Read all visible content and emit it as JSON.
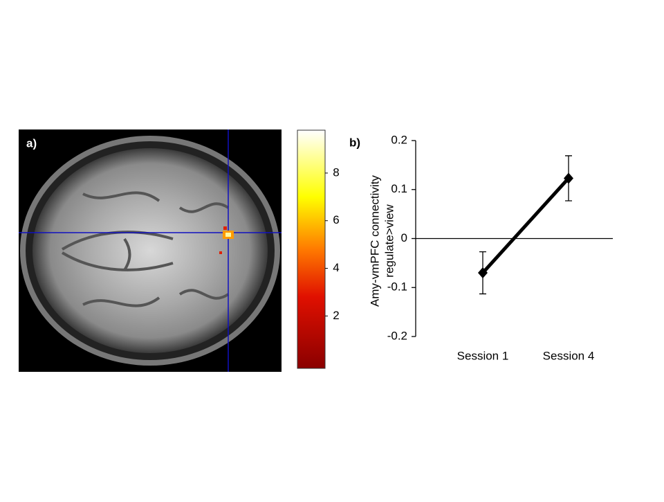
{
  "chart_data": [
    {
      "type": "image",
      "panel_label": "a)",
      "colorbar": {
        "lim": [
          -0.2,
          9.8
        ],
        "ticks": [
          2,
          4,
          6,
          8
        ]
      }
    },
    {
      "type": "line",
      "panel_label": "b)",
      "ylabel": [
        "Amy-vmPFC connectivity",
        "regulate>view"
      ],
      "categories": [
        "Session 1",
        "Session 4"
      ],
      "values": [
        -0.07,
        0.123
      ],
      "errors": [
        0.043,
        0.046
      ],
      "color": "#000000",
      "ylim": [
        -0.2,
        0.2
      ],
      "yticks": [
        -0.2,
        -0.1,
        0,
        0.1,
        0.2
      ]
    }
  ]
}
